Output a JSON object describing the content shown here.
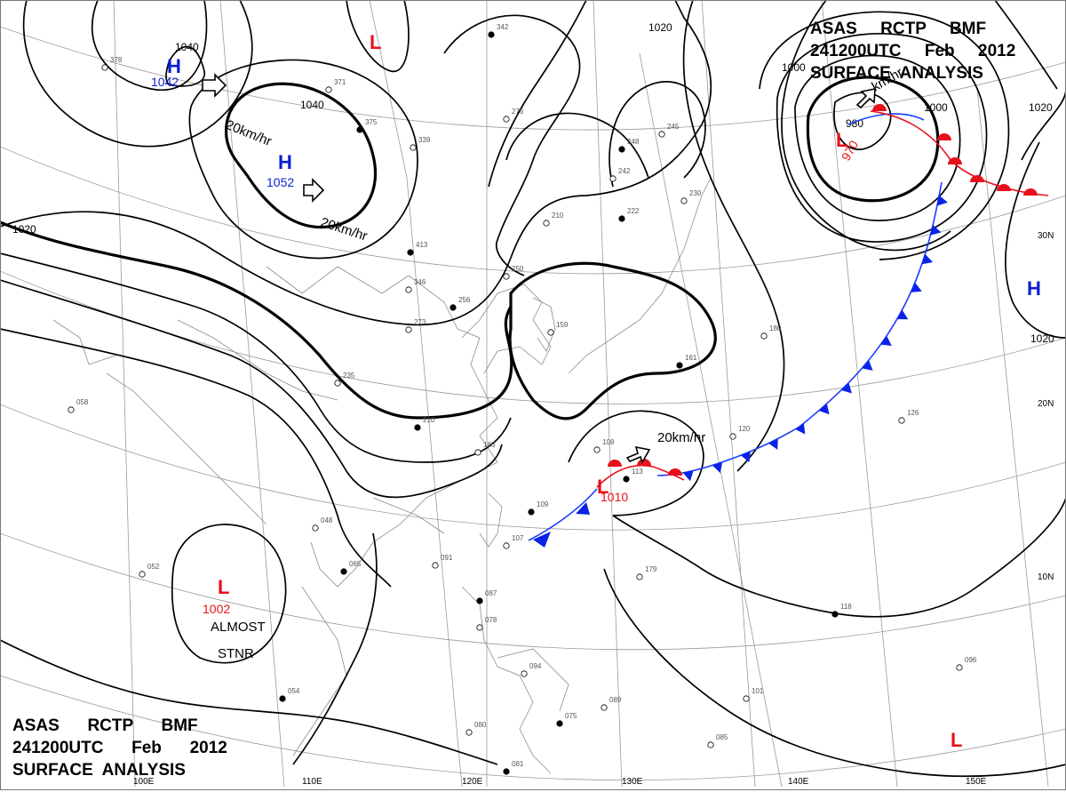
{
  "header_top": {
    "line1": "ASAS     RCTP     BMF",
    "line2": "241200UTC     Feb     2012",
    "line3": "SURFACE  ANALYSIS"
  },
  "header_bottom": {
    "line1": "ASAS      RCTP      BMF",
    "line2": "241200UTC      Feb      2012",
    "line3": "SURFACE  ANALYSIS"
  },
  "lon_labels": [
    "100E",
    "110E",
    "120E",
    "130E",
    "140E",
    "150E"
  ],
  "lat_labels": [
    "30N",
    "20N",
    "10N"
  ],
  "isobar_labels": [
    "1040",
    "1040",
    "1020",
    "1020",
    "1000",
    "980",
    "1000",
    "1020",
    "1020"
  ],
  "pressure_centers": [
    {
      "type": "H",
      "value": "1042",
      "color": "#0a1fd0"
    },
    {
      "type": "H",
      "value": "1052",
      "color": "#0a1fd0"
    },
    {
      "type": "H",
      "value": "",
      "color": "#0a1fd0"
    },
    {
      "type": "L",
      "value": "970",
      "color": "#e8101a"
    },
    {
      "type": "L",
      "value": "1010",
      "color": "#e8101a"
    },
    {
      "type": "L",
      "value": "1002",
      "color": "#e8101a"
    },
    {
      "type": "L",
      "value": "",
      "color": "#e8101a"
    },
    {
      "type": "L",
      "value": "",
      "color": "#e8101a"
    }
  ],
  "motion_labels": [
    "20km/hr",
    "20km/hr",
    "20km/hr",
    "km/hr"
  ],
  "stationary_note": {
    "line1": "ALMOST",
    "line2": "STNR"
  },
  "station_plots": [
    "342",
    "378",
    "371",
    "375",
    "339",
    "276",
    "248",
    "245",
    "242",
    "222",
    "230",
    "210",
    "413",
    "346",
    "250",
    "256",
    "273",
    "235",
    "210",
    "186",
    "159",
    "161",
    "180",
    "108",
    "113",
    "120",
    "126",
    "109",
    "107",
    "091",
    "087",
    "078",
    "094",
    "075",
    "089",
    "080",
    "081",
    "085",
    "101",
    "118",
    "096",
    "179",
    "054",
    "052",
    "058",
    "065",
    "048",
    "080"
  ],
  "colors": {
    "high": "#0a1fd0",
    "low": "#e8101a",
    "cold_front": "#1a3cff",
    "warm_front": "#e8101a",
    "isobar": "#000000",
    "grid": "#9a9a9a"
  }
}
